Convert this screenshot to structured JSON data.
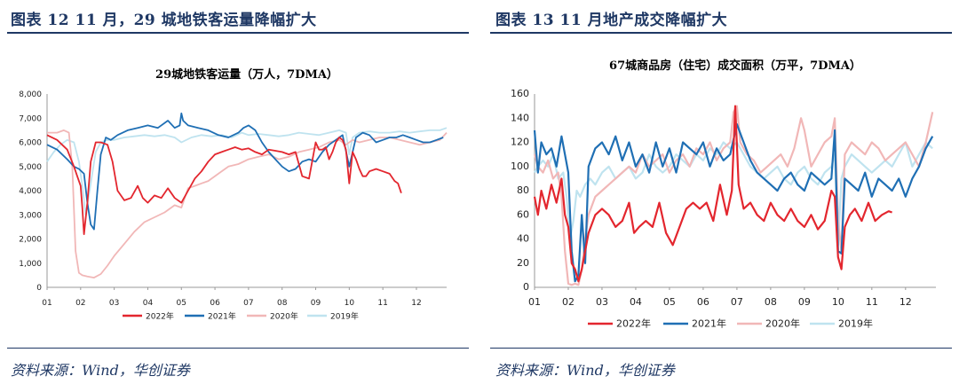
{
  "left": {
    "heading": "图表 12    11 月，29 城地铁客运量降幅扩大",
    "source": "资料来源：Wind，华创证券"
  },
  "right": {
    "heading": "图表 13    11 月地产成交降幅扩大",
    "source": "资料来源：Wind，华创证券"
  },
  "colors": {
    "heading": "#1f3864",
    "s2022": "#e3262e",
    "s2021": "#1f6fb4",
    "s2020": "#f1b7b7",
    "s2019": "#bfe3ef"
  },
  "chart_data": [
    {
      "type": "line",
      "title": "29城地铁客运量（万人，7DMA）",
      "ylim": [
        0,
        8000
      ],
      "yticks": [
        0,
        1000,
        2000,
        3000,
        4000,
        5000,
        6000,
        7000,
        8000
      ],
      "ytick_labels": [
        "0",
        "1,000",
        "2,000",
        "3,000",
        "4,000",
        "5,000",
        "6,000",
        "7,000",
        "8,000"
      ],
      "xlim": [
        1,
        12.9
      ],
      "xticks": [
        "01",
        "02",
        "03",
        "04",
        "05",
        "06",
        "07",
        "08",
        "09",
        "10",
        "11",
        "12"
      ],
      "series": [
        {
          "name": "2022年",
          "color": "#e3262e",
          "x": [
            1.0,
            1.3,
            1.6,
            1.8,
            1.9,
            2.0,
            2.05,
            2.1,
            2.2,
            2.3,
            2.45,
            2.6,
            2.8,
            2.95,
            3.1,
            3.3,
            3.5,
            3.7,
            3.85,
            4.0,
            4.2,
            4.4,
            4.6,
            4.8,
            5.0,
            5.2,
            5.4,
            5.6,
            5.8,
            6.0,
            6.2,
            6.4,
            6.6,
            6.8,
            7.0,
            7.2,
            7.4,
            7.6,
            7.8,
            8.0,
            8.2,
            8.4,
            8.6,
            8.8,
            9.0,
            9.1,
            9.2,
            9.3,
            9.4,
            9.5,
            9.6,
            9.7,
            9.8,
            9.9,
            10.0,
            10.1,
            10.2,
            10.3,
            10.4,
            10.5,
            10.6,
            10.8,
            11.0,
            11.2,
            11.35,
            11.45,
            11.55
          ],
          "values": [
            6300,
            6100,
            5700,
            5000,
            4600,
            4200,
            3300,
            2200,
            3500,
            5200,
            6000,
            6000,
            5900,
            5200,
            4000,
            3600,
            3700,
            4200,
            3700,
            3500,
            3800,
            3700,
            4100,
            3700,
            3500,
            4000,
            4500,
            4800,
            5200,
            5500,
            5600,
            5700,
            5800,
            5700,
            5750,
            5600,
            5500,
            5700,
            5650,
            5600,
            5500,
            5600,
            4600,
            4500,
            6000,
            5700,
            5700,
            5800,
            5300,
            5600,
            6000,
            6200,
            6100,
            5700,
            4300,
            5600,
            5300,
            4900,
            4600,
            4600,
            4800,
            4900,
            4800,
            4700,
            4400,
            4300,
            3900
          ]
        },
        {
          "name": "2021年",
          "color": "#1f6fb4",
          "x": [
            1.0,
            1.3,
            1.6,
            1.8,
            1.95,
            2.1,
            2.2,
            2.3,
            2.4,
            2.5,
            2.6,
            2.75,
            2.9,
            3.1,
            3.4,
            3.7,
            4.0,
            4.3,
            4.6,
            4.8,
            4.95,
            5.0,
            5.05,
            5.2,
            5.5,
            5.8,
            6.1,
            6.4,
            6.7,
            6.85,
            7.0,
            7.2,
            7.4,
            7.6,
            7.8,
            8.0,
            8.2,
            8.4,
            8.6,
            8.8,
            9.0,
            9.2,
            9.4,
            9.6,
            9.8,
            10.0,
            10.2,
            10.4,
            10.6,
            10.8,
            11.0,
            11.2,
            11.4,
            11.6,
            11.8,
            12.0,
            12.2,
            12.4,
            12.6,
            12.8
          ],
          "values": [
            5900,
            5700,
            5300,
            5000,
            4900,
            4700,
            3500,
            2600,
            2400,
            4000,
            5500,
            6200,
            6100,
            6300,
            6500,
            6600,
            6700,
            6600,
            6900,
            6600,
            6700,
            7200,
            6900,
            6700,
            6600,
            6500,
            6300,
            6200,
            6400,
            6600,
            6700,
            6500,
            6000,
            5600,
            5300,
            5000,
            4800,
            4900,
            5200,
            5300,
            5200,
            5600,
            5900,
            6100,
            6300,
            5000,
            6200,
            6400,
            6300,
            6000,
            6100,
            6200,
            6200,
            6300,
            6200,
            6100,
            6000,
            6000,
            6100,
            6200
          ]
        },
        {
          "name": "2020年",
          "color": "#f1b7b7",
          "x": [
            1.0,
            1.3,
            1.5,
            1.65,
            1.75,
            1.85,
            1.95,
            2.05,
            2.2,
            2.4,
            2.6,
            2.8,
            3.0,
            3.3,
            3.6,
            3.9,
            4.2,
            4.5,
            4.8,
            5.0,
            5.2,
            5.4,
            5.6,
            5.8,
            6.1,
            6.4,
            6.7,
            7.0,
            7.3,
            7.6,
            7.9,
            8.2,
            8.5,
            8.8,
            9.1,
            9.4,
            9.7,
            9.9,
            10.1,
            10.3,
            10.6,
            10.9,
            11.2,
            11.5,
            11.8,
            12.1,
            12.4,
            12.7,
            12.9
          ],
          "values": [
            6400,
            6400,
            6500,
            6400,
            5000,
            1500,
            600,
            500,
            450,
            400,
            550,
            900,
            1300,
            1800,
            2300,
            2700,
            2900,
            3100,
            3400,
            3300,
            4100,
            4200,
            4300,
            4400,
            4700,
            5000,
            5100,
            5300,
            5400,
            5500,
            5300,
            5400,
            5600,
            5700,
            5800,
            6000,
            6100,
            5900,
            6100,
            6000,
            6100,
            6200,
            6200,
            6100,
            6000,
            5900,
            6000,
            6100,
            6400
          ]
        },
        {
          "name": "2019年",
          "color": "#bfe3ef",
          "x": [
            1.0,
            1.2,
            1.4,
            1.6,
            1.8,
            1.95,
            2.05,
            2.15,
            2.3,
            2.45,
            2.6,
            2.8,
            3.0,
            3.3,
            3.6,
            3.9,
            4.2,
            4.5,
            4.8,
            5.0,
            5.3,
            5.6,
            5.9,
            6.2,
            6.5,
            6.8,
            7.0,
            7.3,
            7.6,
            7.9,
            8.2,
            8.5,
            8.8,
            9.1,
            9.4,
            9.7,
            9.9,
            10.0,
            10.1,
            10.3,
            10.6,
            10.9,
            11.2,
            11.5,
            11.8,
            12.1,
            12.4,
            12.7,
            12.9
          ],
          "values": [
            5200,
            5600,
            5900,
            6100,
            6000,
            5200,
            4200,
            3000,
            4300,
            5600,
            6000,
            6100,
            6100,
            6200,
            6250,
            6300,
            6250,
            6300,
            6200,
            6000,
            6200,
            6300,
            6250,
            6300,
            6200,
            6400,
            6300,
            6350,
            6300,
            6250,
            6300,
            6400,
            6350,
            6300,
            6400,
            6500,
            6400,
            5500,
            6200,
            6400,
            6450,
            6400,
            6400,
            6450,
            6400,
            6450,
            6500,
            6500,
            6600
          ]
        }
      ]
    },
    {
      "type": "line",
      "title": "67城商品房（住宅）成交面积（万平，7DMA）",
      "ylim": [
        0,
        160
      ],
      "yticks": [
        0,
        20,
        40,
        60,
        80,
        100,
        120,
        140,
        160
      ],
      "ytick_labels": [
        "0",
        "20",
        "40",
        "60",
        "80",
        "100",
        "120",
        "140",
        "160"
      ],
      "xlim": [
        1,
        12.9
      ],
      "xticks": [
        "01",
        "02",
        "03",
        "04",
        "05",
        "06",
        "07",
        "08",
        "09",
        "10",
        "11",
        "12"
      ],
      "series": [
        {
          "name": "2022年",
          "color": "#e3262e",
          "x": [
            1.0,
            1.1,
            1.2,
            1.35,
            1.5,
            1.65,
            1.8,
            1.9,
            2.0,
            2.1,
            2.2,
            2.3,
            2.4,
            2.6,
            2.8,
            3.0,
            3.2,
            3.4,
            3.6,
            3.8,
            3.95,
            4.1,
            4.3,
            4.5,
            4.7,
            4.9,
            5.0,
            5.1,
            5.3,
            5.5,
            5.7,
            5.9,
            6.1,
            6.3,
            6.5,
            6.7,
            6.85,
            6.95,
            7.05,
            7.2,
            7.4,
            7.6,
            7.8,
            8.0,
            8.2,
            8.4,
            8.6,
            8.8,
            9.0,
            9.2,
            9.4,
            9.6,
            9.8,
            9.9,
            10.0,
            10.1,
            10.2,
            10.35,
            10.5,
            10.7,
            10.9,
            11.1,
            11.3,
            11.5,
            11.6
          ],
          "values": [
            75,
            60,
            80,
            65,
            85,
            70,
            90,
            60,
            50,
            20,
            15,
            5,
            15,
            45,
            60,
            65,
            60,
            50,
            55,
            70,
            45,
            50,
            55,
            50,
            70,
            45,
            40,
            35,
            50,
            65,
            70,
            65,
            70,
            55,
            85,
            60,
            80,
            150,
            85,
            65,
            70,
            60,
            55,
            70,
            60,
            55,
            65,
            55,
            50,
            60,
            48,
            55,
            80,
            75,
            25,
            15,
            50,
            60,
            65,
            55,
            70,
            55,
            60,
            63,
            62
          ]
        },
        {
          "name": "2021年",
          "color": "#1f6fb4",
          "x": [
            1.0,
            1.1,
            1.2,
            1.35,
            1.5,
            1.65,
            1.8,
            1.9,
            2.0,
            2.1,
            2.2,
            2.3,
            2.4,
            2.5,
            2.6,
            2.8,
            3.0,
            3.2,
            3.4,
            3.6,
            3.8,
            4.0,
            4.2,
            4.4,
            4.6,
            4.8,
            5.0,
            5.2,
            5.4,
            5.6,
            5.8,
            6.0,
            6.2,
            6.4,
            6.6,
            6.8,
            7.0,
            7.2,
            7.4,
            7.6,
            7.8,
            8.0,
            8.2,
            8.4,
            8.6,
            8.8,
            9.0,
            9.2,
            9.4,
            9.6,
            9.8,
            9.9,
            10.0,
            10.1,
            10.2,
            10.4,
            10.6,
            10.8,
            11.0,
            11.2,
            11.4,
            11.6,
            11.8,
            12.0,
            12.2,
            12.4,
            12.6,
            12.8
          ],
          "values": [
            130,
            95,
            120,
            110,
            115,
            100,
            125,
            110,
            95,
            30,
            5,
            10,
            60,
            20,
            100,
            115,
            120,
            110,
            125,
            105,
            120,
            100,
            110,
            95,
            120,
            100,
            115,
            95,
            120,
            115,
            110,
            120,
            100,
            115,
            105,
            110,
            135,
            120,
            105,
            95,
            90,
            85,
            80,
            90,
            95,
            85,
            80,
            95,
            90,
            85,
            90,
            130,
            30,
            28,
            90,
            85,
            80,
            95,
            75,
            90,
            85,
            80,
            90,
            75,
            90,
            100,
            115,
            125
          ]
        },
        {
          "name": "2020年",
          "color": "#f1b7b7",
          "x": [
            1.0,
            1.1,
            1.25,
            1.4,
            1.55,
            1.7,
            1.8,
            1.9,
            2.0,
            2.1,
            2.2,
            2.3,
            2.4,
            2.5,
            2.6,
            2.8,
            3.0,
            3.2,
            3.4,
            3.6,
            3.8,
            4.0,
            4.2,
            4.4,
            4.6,
            4.8,
            5.0,
            5.2,
            5.4,
            5.6,
            5.8,
            6.0,
            6.2,
            6.4,
            6.6,
            6.8,
            6.9,
            7.0,
            7.1,
            7.3,
            7.5,
            7.7,
            7.9,
            8.1,
            8.3,
            8.5,
            8.7,
            8.9,
            9.0,
            9.2,
            9.4,
            9.6,
            9.8,
            9.9,
            10.0,
            10.1,
            10.2,
            10.4,
            10.6,
            10.8,
            11.0,
            11.2,
            11.4,
            11.6,
            11.8,
            12.0,
            12.2,
            12.4,
            12.6,
            12.8
          ],
          "values": [
            110,
            100,
            95,
            105,
            90,
            95,
            75,
            30,
            3,
            2,
            3,
            2,
            15,
            40,
            60,
            75,
            80,
            85,
            90,
            95,
            100,
            95,
            110,
            100,
            105,
            110,
            95,
            105,
            110,
            100,
            115,
            110,
            120,
            105,
            115,
            120,
            145,
            150,
            120,
            110,
            105,
            95,
            100,
            105,
            110,
            100,
            115,
            140,
            130,
            100,
            110,
            120,
            125,
            140,
            55,
            30,
            110,
            120,
            115,
            110,
            120,
            115,
            105,
            110,
            115,
            120,
            110,
            100,
            120,
            145
          ]
        },
        {
          "name": "2019年",
          "color": "#bfe3ef",
          "x": [
            1.0,
            1.1,
            1.25,
            1.4,
            1.55,
            1.7,
            1.85,
            1.95,
            2.05,
            2.15,
            2.25,
            2.35,
            2.5,
            2.65,
            2.8,
            3.0,
            3.2,
            3.4,
            3.6,
            3.8,
            4.0,
            4.2,
            4.4,
            4.6,
            4.8,
            5.0,
            5.2,
            5.4,
            5.6,
            5.8,
            6.0,
            6.2,
            6.4,
            6.6,
            6.8,
            7.0,
            7.2,
            7.4,
            7.6,
            7.8,
            8.0,
            8.2,
            8.4,
            8.6,
            8.8,
            9.0,
            9.2,
            9.4,
            9.6,
            9.8,
            9.9,
            10.0,
            10.1,
            10.2,
            10.4,
            10.6,
            10.8,
            11.0,
            11.2,
            11.4,
            11.6,
            11.8,
            12.0,
            12.2,
            12.4,
            12.6,
            12.8
          ],
          "values": [
            95,
            100,
            105,
            100,
            110,
            90,
            95,
            75,
            40,
            55,
            80,
            75,
            85,
            90,
            85,
            95,
            100,
            90,
            95,
            100,
            90,
            95,
            110,
            100,
            95,
            100,
            110,
            105,
            100,
            110,
            105,
            115,
            110,
            120,
            115,
            120,
            110,
            100,
            95,
            90,
            95,
            100,
            90,
            85,
            95,
            100,
            90,
            85,
            95,
            100,
            110,
            35,
            90,
            100,
            110,
            105,
            100,
            95,
            100,
            105,
            100,
            110,
            120,
            100,
            110,
            120,
            115
          ]
        }
      ]
    }
  ]
}
